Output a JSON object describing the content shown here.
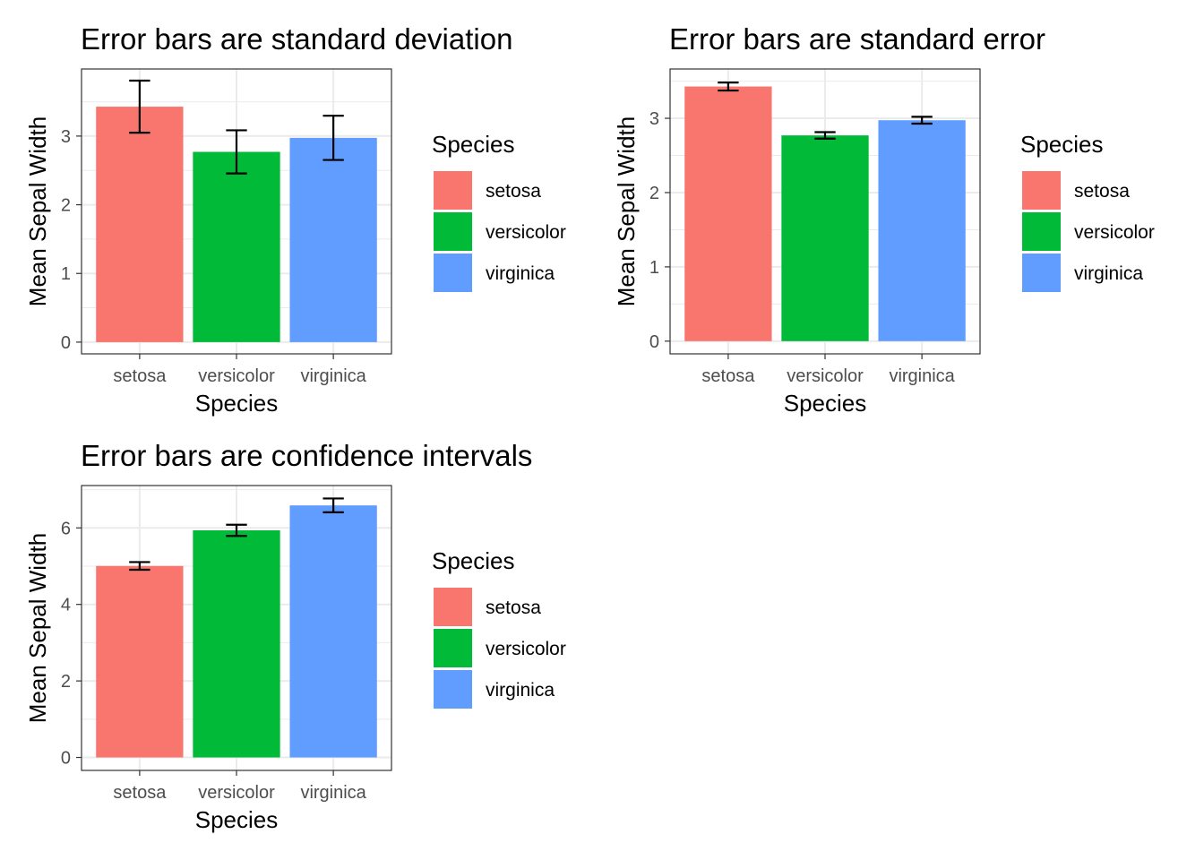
{
  "chart_data": [
    {
      "type": "bar",
      "title": "Error bars are standard deviation",
      "xlabel": "Species",
      "ylabel": "Mean Sepal Width",
      "categories": [
        "setosa",
        "versicolor",
        "virginica"
      ],
      "values": [
        3.428,
        2.77,
        2.974
      ],
      "error_low": [
        3.049,
        2.456,
        2.652
      ],
      "error_high": [
        3.807,
        3.084,
        3.296
      ],
      "ylim": [
        -0.171,
        3.977
      ],
      "yticks": [
        0,
        1,
        2,
        3
      ],
      "legend": {
        "title": "Species",
        "labels": [
          "setosa",
          "versicolor",
          "virginica"
        ],
        "position": "right"
      },
      "grid": true
    },
    {
      "type": "bar",
      "title": "Error bars are standard error",
      "xlabel": "Species",
      "ylabel": "Mean Sepal Width",
      "categories": [
        "setosa",
        "versicolor",
        "virginica"
      ],
      "values": [
        3.428,
        2.77,
        2.974
      ],
      "error_low": [
        3.374,
        2.726,
        2.928
      ],
      "error_high": [
        3.482,
        2.814,
        3.02
      ],
      "ylim": [
        -0.171,
        3.664
      ],
      "yticks": [
        0,
        1,
        2,
        3
      ],
      "legend": {
        "title": "Species",
        "labels": [
          "setosa",
          "versicolor",
          "virginica"
        ],
        "position": "right"
      },
      "grid": true
    },
    {
      "type": "bar",
      "title": "Error bars are confidence intervals",
      "xlabel": "Species",
      "ylabel": "Mean Sepal Width",
      "categories": [
        "setosa",
        "versicolor",
        "virginica"
      ],
      "values": [
        5.006,
        5.936,
        6.588
      ],
      "error_low": [
        4.906,
        5.79,
        6.407
      ],
      "error_high": [
        5.106,
        6.082,
        6.769
      ],
      "ylim": [
        -0.339,
        7.107
      ],
      "yticks": [
        0,
        2,
        4,
        6
      ],
      "legend": {
        "title": "Species",
        "labels": [
          "setosa",
          "versicolor",
          "virginica"
        ],
        "position": "right"
      },
      "grid": true
    }
  ],
  "colors": {
    "setosa": "#F8766D",
    "versicolor": "#00BA38",
    "virginica": "#619CFF",
    "grid": "#EBEBEB",
    "border": "#333333",
    "axis_text": "#4D4D4D",
    "text": "#000000"
  }
}
